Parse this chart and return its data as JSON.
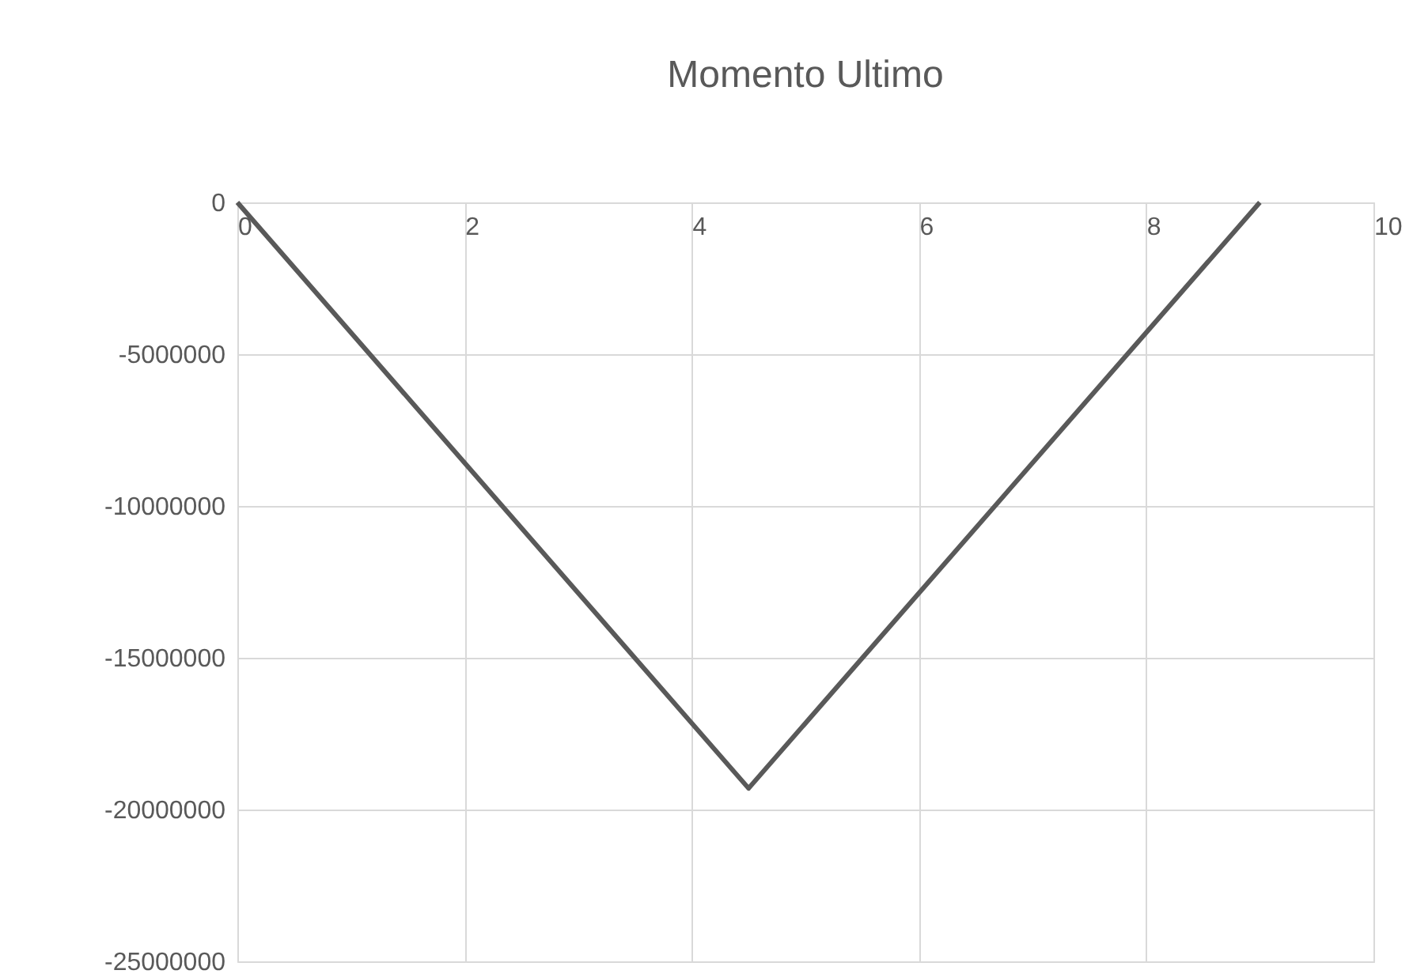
{
  "chart_data": {
    "type": "line",
    "title": "Momento Ultimo",
    "x": [
      0,
      4.5,
      9
    ],
    "series": [
      {
        "color": "#595959",
        "values": [
          0,
          -19300000,
          0
        ]
      }
    ],
    "xlim": [
      0,
      10
    ],
    "xticks": [
      0,
      2,
      4,
      6,
      8,
      10
    ],
    "ylim": [
      -25000000,
      0
    ],
    "yticks": [
      -25000000,
      -20000000,
      -15000000,
      -10000000,
      -5000000,
      0
    ],
    "grid": true,
    "marker": "none",
    "line_style": "solid"
  }
}
